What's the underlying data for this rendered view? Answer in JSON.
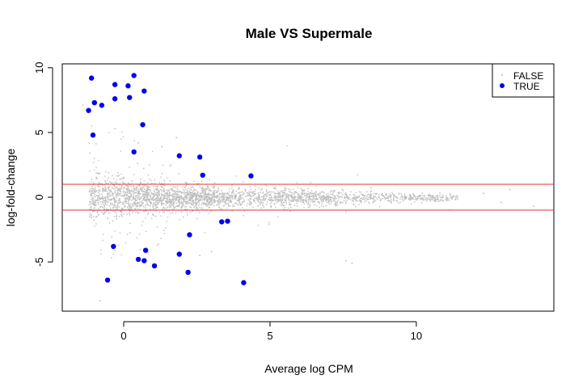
{
  "chart_data": {
    "type": "scatter",
    "title": "Male VS Supermale",
    "xlabel": "Average log CPM",
    "ylabel": "log-fold-change",
    "xlim": [
      -2.1,
      14.7
    ],
    "ylim": [
      -8.8,
      10.3
    ],
    "x_ticks": [
      0,
      5,
      10
    ],
    "y_ticks": [
      -5,
      0,
      5,
      10
    ],
    "x_tick_labels": [
      "0",
      "5",
      "10"
    ],
    "y_tick_labels": [
      "-5",
      "0",
      "5",
      "10"
    ],
    "threshold_lines": [
      1,
      -1
    ],
    "threshold_color": "#e03030",
    "grid": false,
    "legend": {
      "position": "top-right",
      "entries": [
        "FALSE",
        "TRUE"
      ]
    },
    "series": [
      {
        "name": "FALSE",
        "color": "#bebebe",
        "marker": "small-dot",
        "description_points": "background cloud of non-significant genes; centered at 0, wide spread at low CPM narrowing toward high CPM",
        "outliers": [
          {
            "x": 7.8,
            "y": -5.1
          },
          {
            "x": 7.6,
            "y": -4.9
          },
          {
            "x": -0.8,
            "y": -8.0
          },
          {
            "x": 1.8,
            "y": 4.6
          },
          {
            "x": 0.5,
            "y": 4.2
          },
          {
            "x": 2.6,
            "y": -4.5
          },
          {
            "x": 3.0,
            "y": -4.2
          },
          {
            "x": 13.2,
            "y": 0.6
          },
          {
            "x": 12.9,
            "y": -0.4
          },
          {
            "x": 14.0,
            "y": -0.7
          },
          {
            "x": 12.3,
            "y": 0.3
          },
          {
            "x": -1.4,
            "y": 7.1
          },
          {
            "x": -0.3,
            "y": 5.3
          },
          {
            "x": 1.3,
            "y": 3.9
          }
        ]
      },
      {
        "name": "TRUE",
        "color": "#0000ee",
        "marker": "filled-circle",
        "points": [
          {
            "x": -1.1,
            "y": 9.2
          },
          {
            "x": 0.35,
            "y": 9.4
          },
          {
            "x": -0.3,
            "y": 8.7
          },
          {
            "x": 0.15,
            "y": 8.6
          },
          {
            "x": 0.7,
            "y": 8.2
          },
          {
            "x": 0.2,
            "y": 7.7
          },
          {
            "x": -0.3,
            "y": 7.6
          },
          {
            "x": -1.0,
            "y": 7.3
          },
          {
            "x": -0.75,
            "y": 7.1
          },
          {
            "x": -1.2,
            "y": 6.7
          },
          {
            "x": 0.65,
            "y": 5.6
          },
          {
            "x": -1.05,
            "y": 4.8
          },
          {
            "x": 0.35,
            "y": 3.5
          },
          {
            "x": 1.9,
            "y": 3.2
          },
          {
            "x": 2.6,
            "y": 3.1
          },
          {
            "x": 2.7,
            "y": 1.7
          },
          {
            "x": 4.35,
            "y": 1.65
          },
          {
            "x": 3.35,
            "y": -1.9
          },
          {
            "x": 3.55,
            "y": -1.85
          },
          {
            "x": 2.25,
            "y": -2.9
          },
          {
            "x": -0.35,
            "y": -3.8
          },
          {
            "x": 1.9,
            "y": -4.4
          },
          {
            "x": 0.75,
            "y": -4.1
          },
          {
            "x": 0.5,
            "y": -4.8
          },
          {
            "x": 0.7,
            "y": -4.9
          },
          {
            "x": 1.05,
            "y": -5.3
          },
          {
            "x": 2.2,
            "y": -5.8
          },
          {
            "x": -0.55,
            "y": -6.4
          },
          {
            "x": 4.1,
            "y": -6.6
          }
        ]
      }
    ]
  }
}
